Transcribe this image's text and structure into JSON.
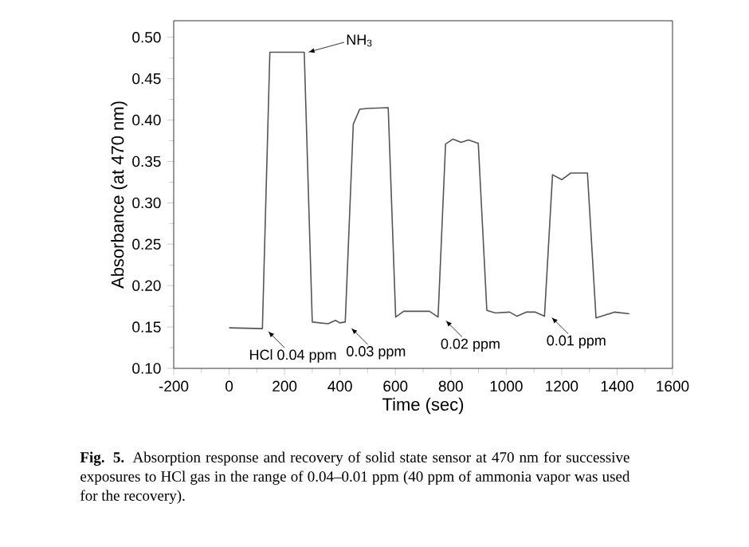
{
  "chart_data": {
    "type": "line",
    "xlabel": "Time (sec)",
    "ylabel": "Absorbance (at 470 nm)",
    "xlim": [
      -200,
      1600
    ],
    "xticks": [
      -200,
      0,
      200,
      400,
      600,
      800,
      1000,
      1200,
      1400,
      1600
    ],
    "ylim": [
      0.1,
      0.52
    ],
    "yticks": [
      {
        "value": 0.1,
        "label": "0.10"
      },
      0.15,
      {
        "value": 0.2,
        "label": "0.20"
      },
      0.25,
      {
        "value": 0.3,
        "label": "0.30"
      },
      0.35,
      {
        "value": 0.4,
        "label": "0.40"
      },
      0.45,
      {
        "value": 0.5,
        "label": "0.50"
      }
    ],
    "series": [
      {
        "color": "#555555",
        "x": [
          0,
          120,
          147,
          271,
          300,
          357,
          384,
          399,
          419,
          448,
          471,
          498,
          574,
          601,
          630,
          723,
          754,
          781,
          808,
          837,
          864,
          899,
          930,
          961,
          1012,
          1039,
          1072,
          1105,
          1138,
          1167,
          1200,
          1233,
          1293,
          1324,
          1353,
          1390,
          1444
        ],
        "values": [
          0.149,
          0.148,
          0.482,
          0.482,
          0.156,
          0.154,
          0.158,
          0.155,
          0.156,
          0.395,
          0.413,
          0.414,
          0.415,
          0.162,
          0.169,
          0.169,
          0.162,
          0.371,
          0.377,
          0.373,
          0.376,
          0.372,
          0.17,
          0.167,
          0.168,
          0.163,
          0.168,
          0.168,
          0.163,
          0.334,
          0.328,
          0.336,
          0.336,
          0.161,
          0.164,
          0.168,
          0.166
        ]
      }
    ],
    "marker": "none",
    "line_style": "solid",
    "annotations": [
      {
        "text": "NH$_{3}$",
        "x": 285,
        "y": 0.482
      },
      {
        "text": "HCl 0.04 ppm",
        "x": 140,
        "y": 0.145
      },
      {
        "text": "0.03 ppm",
        "x": 440,
        "y": 0.149
      },
      {
        "text": "0.02 ppm",
        "x": 781,
        "y": 0.158
      },
      {
        "text": "0.01 ppm",
        "x": 1163,
        "y": 0.162
      },
      "**Fig. 5.** Absorption response and recovery of solid state sensor at 470 nm for successive exposures to HCl gas in the range of 0.04–0.01 ppm (40 ppm of ammonia vapor was used for the recovery)."
    ]
  }
}
